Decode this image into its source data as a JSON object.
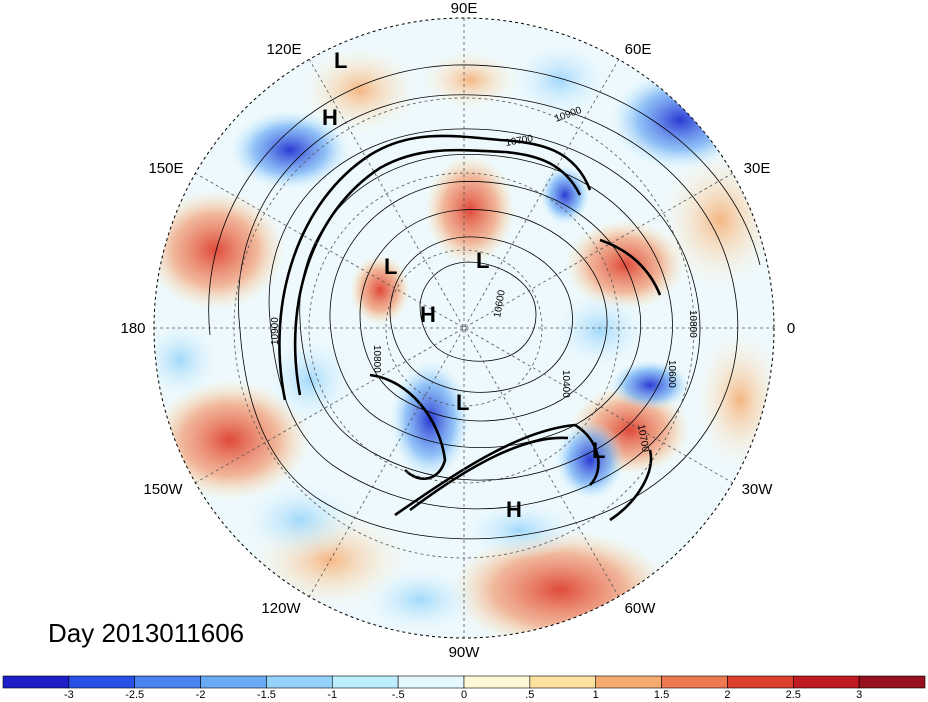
{
  "map": {
    "projection": "north-polar-stereographic",
    "date_label": "Day 2013011606",
    "longitude_labels": [
      "90E",
      "60E",
      "30E",
      "0",
      "30W",
      "60W",
      "90W",
      "120W",
      "150W",
      "180",
      "150E",
      "120E"
    ],
    "contour_labels": [
      "10900",
      "10700",
      "10900",
      "10800",
      "10800",
      "10600",
      "10700",
      "10400",
      "10600"
    ],
    "pressure_centers": [
      "L",
      "H",
      "L",
      "L",
      "H",
      "L",
      "L",
      "H"
    ],
    "colors": {
      "shading_negative": "#2a55d8",
      "shading_positive": "#d43a2a",
      "contour": "#000000"
    }
  },
  "colorbar": {
    "ticks": [
      "-3",
      "-2.5",
      "-2",
      "-1.5",
      "-1",
      "-.5",
      "0",
      ".5",
      "1",
      "1.5",
      "2",
      "2.5",
      "3"
    ],
    "colors": [
      "#1e1ec8",
      "#2850e6",
      "#4a82f0",
      "#6aaaf5",
      "#94d2fa",
      "#bdeefd",
      "#e4f8fe",
      "#fff8d6",
      "#fde2a0",
      "#f6aa6e",
      "#ee7850",
      "#de4030",
      "#c01a22",
      "#961020"
    ]
  }
}
